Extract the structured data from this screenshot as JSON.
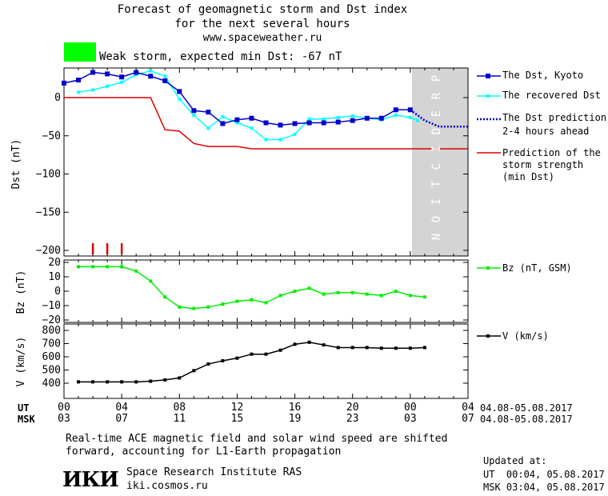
{
  "header": {
    "title_line1": "Forecast of geomagnetic storm and Dst index",
    "title_line2": "for the next several hours",
    "site": "www.spaceweather.ru",
    "status_text": "Weak storm, expected min Dst: -67 nT",
    "status_color": "#00ff00"
  },
  "legend": {
    "dst_kyoto": "The Dst, Kyoto",
    "dst_recovered": "The recovered Dst",
    "dst_prediction_line1": "The Dst prediction",
    "dst_prediction_line2": "2-4 hours ahead",
    "storm_line1": "Prediction of the",
    "storm_line2": "storm strength",
    "storm_line3": "(min Dst)",
    "bz": "Bz (nT, GSM)",
    "v": "V (km/s)"
  },
  "prediction_label": "PREDICTION",
  "time_axis": {
    "ut_label": "UT",
    "msk_label": "MSK",
    "ut_ticks": [
      "00",
      "04",
      "08",
      "12",
      "16",
      "20",
      "00",
      "04"
    ],
    "msk_ticks": [
      "03",
      "07",
      "11",
      "15",
      "19",
      "23",
      "03",
      "07"
    ],
    "date_range_ut": "04.08-05.08.2017",
    "date_range_msk": "04.08-05.08.2017"
  },
  "footer": {
    "note_line1": "Real-time ACE magnetic field and solar wind speed are shifted",
    "note_line2": "forward, accounting for L1-Earth propagation",
    "logo": "ИКИ",
    "institute": "Space Research Institute RAS",
    "url": "iki.cosmos.ru",
    "updated_label": "Updated at:",
    "updated_ut": "UT  00:04, 05.08.2017",
    "updated_msk": "MSK 03:04, 05.08.2017"
  },
  "colors": {
    "dst_kyoto": "#0000cc",
    "dst_recovered": "#00ffff",
    "dst_prediction": "#0000cc",
    "storm": "#dd0000",
    "bz": "#00ee00",
    "v": "#000000",
    "prediction_band": "#d4d4d4"
  },
  "chart_data": [
    {
      "type": "line",
      "ylabel": "Dst (nT)",
      "ylim": [
        -200,
        35
      ],
      "yticks": [
        0,
        -50,
        -100,
        -150,
        -200
      ],
      "xlim_hours": [
        0,
        28
      ],
      "prediction_region_hours": [
        24,
        28
      ],
      "series": [
        {
          "name": "The Dst, Kyoto",
          "x": [
            0,
            1,
            2,
            3,
            4,
            5,
            6,
            7,
            8,
            9,
            10,
            11,
            12,
            13,
            14,
            15,
            16,
            17,
            18,
            19,
            20,
            21,
            22,
            23,
            24
          ],
          "y": [
            19,
            23,
            33,
            31,
            27,
            33,
            28,
            22,
            8,
            -17,
            -19,
            -34,
            -29,
            -27,
            -33,
            -36,
            -34,
            -33,
            -33,
            -32,
            -30,
            -27,
            -27,
            -16,
            -16
          ]
        },
        {
          "name": "The recovered Dst",
          "x": [
            1,
            2,
            3,
            4,
            5,
            6,
            7,
            8,
            9,
            10,
            11,
            12,
            13,
            14,
            15,
            16,
            17,
            18,
            19,
            20,
            21,
            22,
            23,
            24,
            24.5
          ],
          "y": [
            7,
            10,
            15,
            20,
            30,
            35,
            28,
            -2,
            -23,
            -40,
            -25,
            -33,
            -40,
            -55,
            -55,
            -48,
            -28,
            -28,
            -26,
            -24,
            -27,
            -29,
            -23,
            -26,
            -30
          ]
        },
        {
          "name": "The Dst prediction",
          "x": [
            24,
            24.5,
            25,
            26,
            27,
            28
          ],
          "y": [
            -16,
            -23,
            -30,
            -38,
            -38,
            -38
          ]
        },
        {
          "name": "Prediction of the storm strength",
          "x": [
            0,
            6,
            7,
            8,
            9,
            10,
            11,
            12,
            13,
            14,
            15,
            16,
            17,
            18,
            19,
            20,
            21,
            22,
            23,
            24,
            25,
            26,
            27,
            28
          ],
          "y": [
            0,
            0,
            -42,
            -44,
            -60,
            -64,
            -64,
            -64,
            -67,
            -67,
            -67,
            -67,
            -67,
            -67,
            -67,
            -67,
            -67,
            -67,
            -67,
            -67,
            -67,
            -67,
            -67,
            -67
          ]
        }
      ],
      "markers_hours": [
        2,
        3,
        4
      ]
    },
    {
      "type": "line",
      "ylabel": "Bz (nT)",
      "ylim": [
        -22,
        22
      ],
      "yticks": [
        20,
        10,
        0,
        -10,
        -20
      ],
      "series": [
        {
          "name": "Bz (nT, GSM)",
          "x": [
            1,
            2,
            3,
            4,
            5,
            6,
            7,
            8,
            9,
            10,
            11,
            12,
            13,
            14,
            15,
            16,
            17,
            18,
            19,
            20,
            21,
            22,
            23,
            24,
            25
          ],
          "y": [
            17,
            17,
            17,
            17,
            14,
            7,
            -4,
            -11,
            -12,
            -11,
            -9,
            -7,
            -6,
            -8,
            -3,
            0,
            2,
            -2,
            -1,
            -1,
            -2,
            -3,
            0,
            -3,
            -4
          ]
        }
      ]
    },
    {
      "type": "line",
      "ylabel": "V (km/s)",
      "ylim": [
        300,
        820
      ],
      "yticks": [
        800,
        700,
        600,
        500,
        400
      ],
      "series": [
        {
          "name": "V (km/s)",
          "x": [
            1,
            2,
            3,
            4,
            5,
            6,
            7,
            8,
            9,
            10,
            11,
            12,
            13,
            14,
            15,
            16,
            17,
            18,
            19,
            20,
            21,
            22,
            23,
            24,
            25
          ],
          "y": [
            410,
            410,
            410,
            410,
            410,
            415,
            425,
            440,
            495,
            545,
            570,
            590,
            620,
            620,
            650,
            695,
            710,
            690,
            670,
            670,
            670,
            665,
            665,
            665,
            670
          ]
        }
      ]
    }
  ]
}
